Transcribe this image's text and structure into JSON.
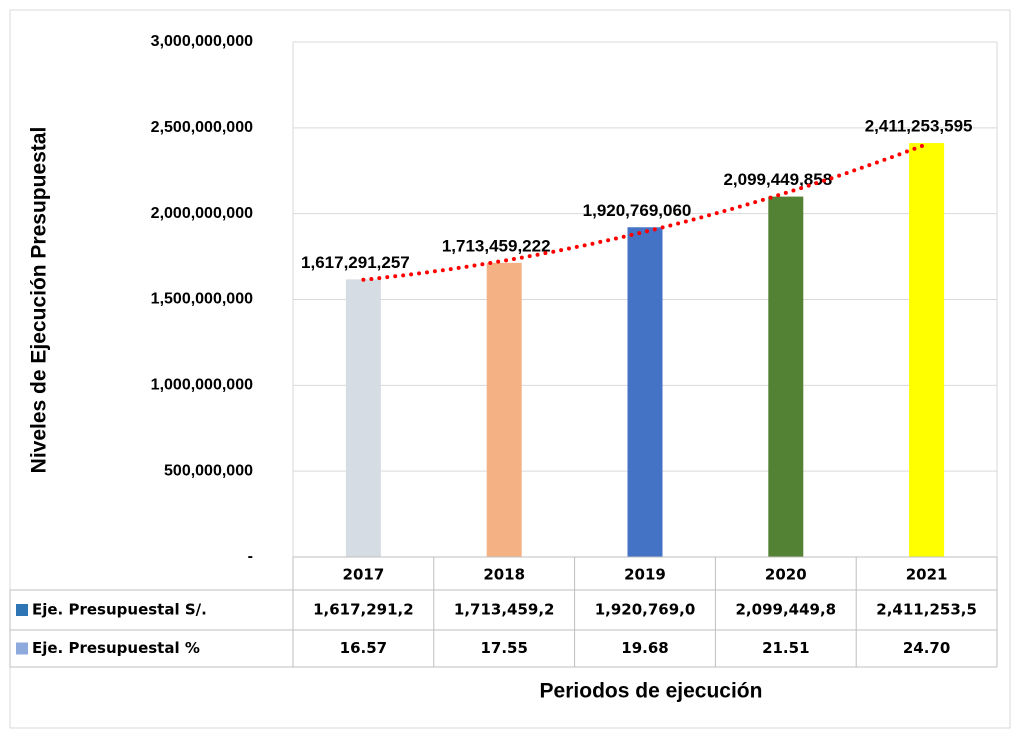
{
  "chart_data": {
    "type": "bar",
    "ylabel": "Niveles de Ejecución Presupuestal",
    "xlabel": "Periodos de ejecución",
    "categories": [
      "2017",
      "2018",
      "2019",
      "2020",
      "2021"
    ],
    "values": [
      1617291257,
      1713459222,
      1920769060,
      2099449858,
      2411253595
    ],
    "value_labels": [
      "1,617,291,257",
      "1,713,459,222",
      "1,920,769,060",
      "2,099,449,858",
      "2,411,253,595"
    ],
    "colors": [
      "#d6dce4",
      "#f4b183",
      "#4472c4",
      "#548235",
      "#ffff00"
    ],
    "ylim": [
      0,
      3000000000
    ],
    "yticks": [
      {
        "value": 0,
        "label": "-"
      },
      {
        "value": 500000000,
        "label": "500,000,000"
      },
      {
        "value": 1000000000,
        "label": "1,000,000,000"
      },
      {
        "value": 1500000000,
        "label": "1,500,000,000"
      },
      {
        "value": 2000000000,
        "label": "2,000,000,000"
      },
      {
        "value": 2500000000,
        "label": "2,500,000,000"
      },
      {
        "value": 3000000000,
        "label": "3,000,000,000"
      }
    ],
    "grid": true,
    "trendline": {
      "color": "#ff0000"
    },
    "data_table": [
      {
        "name": "Eje. Presupuestal S/.",
        "color": "#2e75b6",
        "cells": [
          "1,617,291,2",
          "1,713,459,2",
          "1,920,769,0",
          "2,099,449,8",
          "2,411,253,5"
        ]
      },
      {
        "name": "Eje. Presupuestal %",
        "color": "#8ea9db",
        "cells": [
          "16.57",
          "17.55",
          "19.68",
          "21.51",
          "24.70"
        ]
      }
    ]
  }
}
